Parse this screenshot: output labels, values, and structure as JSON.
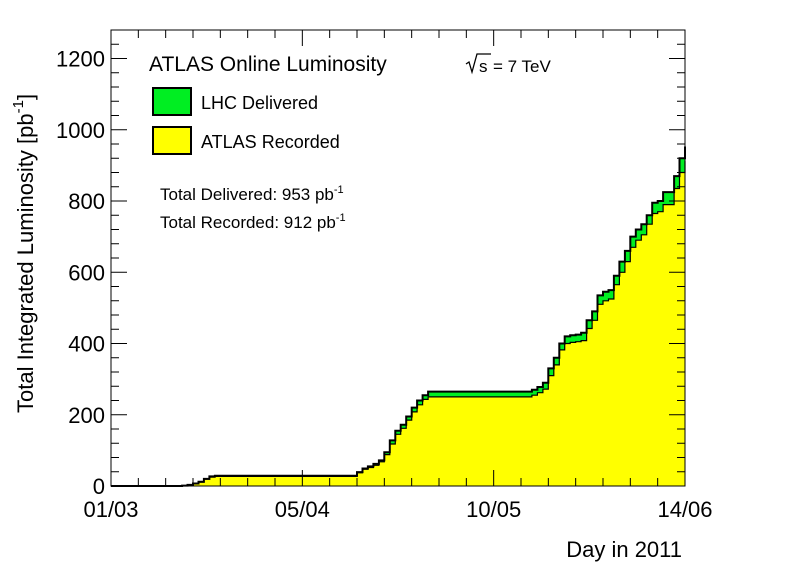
{
  "chart_data": {
    "type": "area",
    "title": "ATLAS Online Luminosity",
    "energy_label": "= 7 TeV",
    "energy_symbol": "s",
    "xlabel": "Day in 2011",
    "ylabel": "Total Integrated Luminosity [pb",
    "ylabel_sup": "-1",
    "ylabel_close": "]",
    "x_tick_labels": [
      "01/03",
      "05/04",
      "10/05",
      "14/06"
    ],
    "x_tick_days": [
      0,
      35,
      70,
      105
    ],
    "y_ticks": [
      0,
      200,
      400,
      600,
      800,
      1000,
      1200
    ],
    "xlim": [
      0,
      105
    ],
    "ylim": [
      0,
      1280
    ],
    "grid": false,
    "legend_position": "top-left",
    "colors": {
      "delivered": "#00ee22",
      "recorded": "#ffff00",
      "edge": "#000000"
    },
    "summary": {
      "delivered_prefix": "Total Delivered: 953 pb",
      "recorded_prefix": "Total Recorded: 912 pb",
      "unit_sup": "-1"
    },
    "series": [
      {
        "name": "LHC Delivered",
        "x": [
          0,
          13,
          14,
          15,
          16,
          17,
          18,
          19,
          20,
          21,
          22,
          23,
          24,
          25,
          26,
          27,
          28,
          29,
          30,
          31,
          32,
          33,
          34,
          35,
          36,
          37,
          38,
          39,
          40,
          41,
          42,
          43,
          44,
          45,
          46,
          47,
          48,
          49,
          50,
          51,
          52,
          53,
          54,
          55,
          56,
          57,
          58,
          59,
          60,
          61,
          62,
          63,
          64,
          65,
          66,
          67,
          68,
          69,
          70,
          71,
          72,
          73,
          74,
          75,
          76,
          77,
          78,
          79,
          80,
          81,
          82,
          83,
          84,
          85,
          86,
          87,
          88,
          89,
          90,
          91,
          92,
          93,
          94,
          95,
          96,
          97,
          98,
          99,
          100,
          101,
          102,
          103,
          104,
          105
        ],
        "values": [
          0,
          1,
          3,
          7,
          12,
          20,
          27,
          29,
          29,
          29,
          29,
          29,
          29,
          29,
          29,
          29,
          29,
          29,
          29,
          29,
          29,
          29,
          29,
          29,
          29,
          29,
          29,
          29,
          29,
          29,
          29,
          29,
          29,
          39,
          49,
          55,
          62,
          72,
          95,
          128,
          155,
          172,
          195,
          220,
          240,
          255,
          265,
          265,
          265,
          265,
          265,
          265,
          265,
          265,
          265,
          265,
          265,
          265,
          265,
          265,
          265,
          265,
          265,
          265,
          265,
          270,
          278,
          290,
          330,
          360,
          400,
          420,
          423,
          425,
          430,
          465,
          490,
          535,
          545,
          550,
          590,
          630,
          660,
          700,
          720,
          735,
          760,
          795,
          800,
          825,
          825,
          870,
          920,
          953
        ]
      },
      {
        "name": "ATLAS Recorded",
        "x": [
          0,
          13,
          14,
          15,
          16,
          17,
          18,
          19,
          20,
          21,
          22,
          23,
          24,
          25,
          26,
          27,
          28,
          29,
          30,
          31,
          32,
          33,
          34,
          35,
          36,
          37,
          38,
          39,
          40,
          41,
          42,
          43,
          44,
          45,
          46,
          47,
          48,
          49,
          50,
          51,
          52,
          53,
          54,
          55,
          56,
          57,
          58,
          59,
          60,
          61,
          62,
          63,
          64,
          65,
          66,
          67,
          68,
          69,
          70,
          71,
          72,
          73,
          74,
          75,
          76,
          77,
          78,
          79,
          80,
          81,
          82,
          83,
          84,
          85,
          86,
          87,
          88,
          89,
          90,
          91,
          92,
          93,
          94,
          95,
          96,
          97,
          98,
          99,
          100,
          101,
          102,
          103,
          104,
          105
        ],
        "values": [
          0,
          1,
          3,
          6,
          11,
          19,
          25,
          27,
          27,
          27,
          27,
          27,
          27,
          27,
          27,
          27,
          27,
          27,
          27,
          27,
          27,
          27,
          27,
          27,
          27,
          27,
          27,
          27,
          27,
          27,
          27,
          27,
          27,
          37,
          47,
          52,
          58,
          68,
          88,
          118,
          145,
          162,
          185,
          208,
          228,
          243,
          250,
          250,
          250,
          250,
          250,
          250,
          250,
          250,
          250,
          250,
          250,
          250,
          250,
          250,
          250,
          250,
          250,
          250,
          250,
          255,
          262,
          272,
          310,
          340,
          382,
          400,
          403,
          405,
          408,
          442,
          465,
          510,
          520,
          525,
          565,
          600,
          630,
          670,
          690,
          705,
          735,
          765,
          770,
          790,
          790,
          835,
          880,
          912
        ]
      }
    ]
  }
}
